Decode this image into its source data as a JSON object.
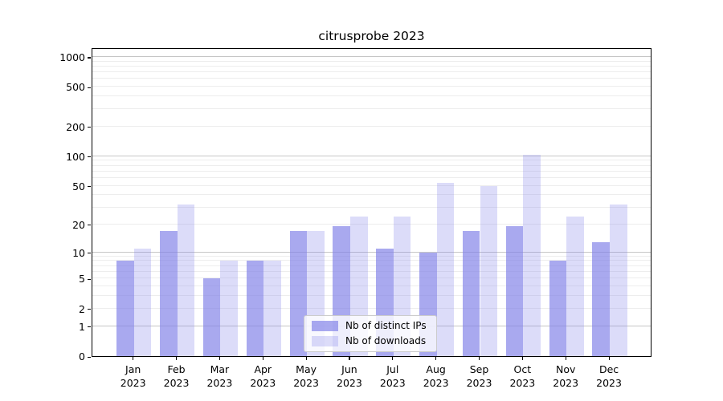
{
  "figure": {
    "title": "citrusprobe 2023"
  },
  "chart_data": {
    "type": "bar",
    "title": "citrusprobe 2023",
    "categories": [
      "Jan 2023",
      "Feb 2023",
      "Mar 2023",
      "Apr 2023",
      "May 2023",
      "Jun 2023",
      "Jul 2023",
      "Aug 2023",
      "Sep 2023",
      "Oct 2023",
      "Nov 2023",
      "Dec 2023"
    ],
    "x_tick_line1": [
      "Jan",
      "Feb",
      "Mar",
      "Apr",
      "May",
      "Jun",
      "Jul",
      "Aug",
      "Sep",
      "Oct",
      "Nov",
      "Dec"
    ],
    "x_tick_line2": "2023",
    "series": [
      {
        "name": "Nb of distinct IPs",
        "fill": "rgba(128,128,232,0.68)",
        "hex_on_white": "#a9a9ef",
        "values": [
          8,
          17,
          5,
          8,
          17,
          19,
          11,
          10,
          17,
          19,
          8,
          13
        ]
      },
      {
        "name": "Nb of downloads",
        "fill": "rgba(128,128,232,0.28)",
        "hex_on_white": "#dbdbf9",
        "values": [
          11,
          32,
          8,
          8,
          17,
          24,
          24,
          54,
          50,
          103,
          24,
          32
        ]
      }
    ],
    "y_scale": "symlog (position ~ ln(1+value))",
    "y_tick_labels": [
      "0",
      "1",
      "2",
      "5",
      "10",
      "20",
      "50",
      "100",
      "200",
      "500",
      "1000"
    ],
    "y_tick_values": [
      0,
      1,
      2,
      5,
      10,
      20,
      50,
      100,
      200,
      500,
      1000
    ],
    "y_minor_grid_values": [
      2,
      3,
      4,
      5,
      6,
      7,
      8,
      9,
      20,
      30,
      40,
      50,
      60,
      70,
      80,
      90,
      200,
      300,
      400,
      500,
      600,
      700,
      800,
      900
    ],
    "y_major_grid_values": [
      1,
      10,
      100,
      1000
    ],
    "ylim": [
      0,
      1300
    ],
    "grid": true,
    "legend_position": "lower center (inside axes)",
    "colors": {
      "major_grid": "#c6c6c6",
      "minor_grid": "#ededed",
      "axis": "#000000",
      "background": "#ffffff"
    }
  }
}
